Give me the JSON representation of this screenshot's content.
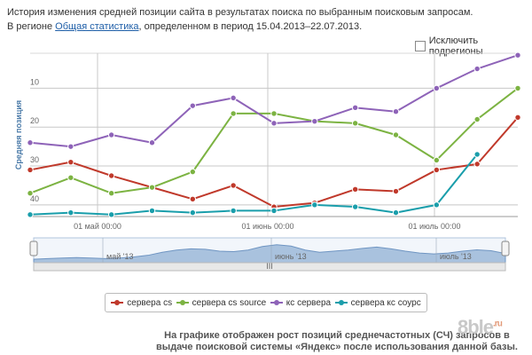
{
  "header": {
    "line1": "История изменения средней позиции сайта в результатах поиска по выбранным поисковым запросам.",
    "region_prefix": "В регионе",
    "region_link": "Общая статистика",
    "period_text": ", определенном в период 15.04.2013–22.07.2013."
  },
  "exclude_subregions": {
    "label": "Исключить подрегионы",
    "checked": false
  },
  "chart_data": {
    "type": "line",
    "ylabel": "Средняя позиция",
    "y_axis_reversed": true,
    "y_ticks": [
      "10",
      "20",
      "30",
      "40"
    ],
    "ylim": [
      43,
      1
    ],
    "x_tick_labels": [
      "01 май 00:00",
      "01 июнь 00:00",
      "01 июль 00:00"
    ],
    "grid": true,
    "series": [
      {
        "name": "сервера cs",
        "color": "#c0392b",
        "values": [
          31,
          29,
          32.5,
          35.5,
          38.5,
          35,
          40.5,
          39.5,
          36,
          36.5,
          31,
          29.5,
          17.5
        ]
      },
      {
        "name": "сервера cs source",
        "color": "#7cb342",
        "values": [
          37,
          33,
          37,
          35.5,
          31.5,
          16.5,
          16.5,
          18.5,
          19,
          22,
          28.5,
          18,
          10
        ]
      },
      {
        "name": "кс сервера",
        "color": "#8e63b8",
        "values": [
          24,
          25,
          22,
          24,
          14.5,
          12.5,
          19,
          18.5,
          15,
          16,
          10,
          5,
          1.5
        ]
      },
      {
        "name": "сервера кс соурс",
        "color": "#1a9eab",
        "values": [
          42.5,
          42,
          42.5,
          41.5,
          42,
          41.5,
          41.5,
          40,
          40.5,
          42,
          40,
          27
        ]
      }
    ],
    "navigator": {
      "tick_labels": [
        "май '13",
        "июнь '13",
        "июль '13"
      ],
      "handle_label": "III"
    },
    "legend_placement": "bottom"
  },
  "footer": {
    "text": "На графике отображен рост позиций среднечастотных (СЧ) запросов в выдаче поисковой системы «Яндекс» после использования данной базы."
  },
  "watermark": {
    "text": "8ble",
    "suffix": ".ru"
  }
}
